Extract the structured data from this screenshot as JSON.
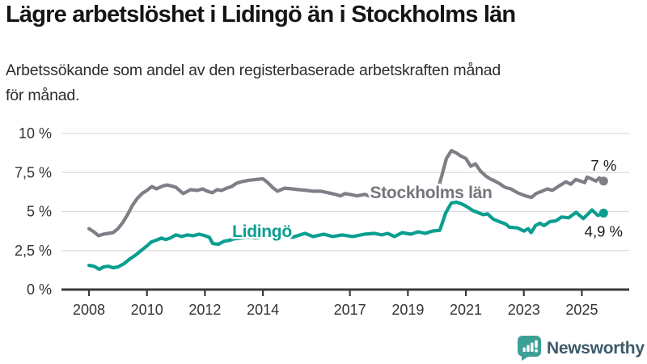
{
  "header": {
    "title": "Lägre arbetslöshet i Lidingö än i Stockholms län",
    "subtitle_lines": [
      "Arbetssökande som andel av den registerbaserade arbetskraften månad",
      "för månad."
    ]
  },
  "chart_data": {
    "type": "line",
    "unit": "%",
    "grid": "horizontal",
    "x_axis": {
      "range": [
        2007.9,
        2026.3
      ],
      "ticks": [
        2008,
        2010,
        2012,
        2014,
        2017,
        2019,
        2021,
        2023,
        2025
      ],
      "labels": [
        "2008",
        "2010",
        "2012",
        "2014",
        "2017",
        "2019",
        "2021",
        "2023",
        "2025"
      ]
    },
    "y_axis": {
      "range": [
        0,
        10
      ],
      "ticks": [
        0,
        2.5,
        5,
        7.5,
        10
      ],
      "labels": [
        "0 %",
        "2,5 %",
        "5 %",
        "7,5 %",
        "10 %"
      ]
    },
    "series": [
      {
        "name": "Stockholms län",
        "color": "#7e7e86",
        "label_color": "#74747c",
        "end_label": "7 %",
        "end_value": 7.0,
        "inline_label_anchor": {
          "year": 2019.8,
          "value": 6.22
        },
        "points": [
          [
            2008.0,
            3.9
          ],
          [
            2008.17,
            3.7
          ],
          [
            2008.33,
            3.45
          ],
          [
            2008.5,
            3.55
          ],
          [
            2008.67,
            3.6
          ],
          [
            2008.83,
            3.65
          ],
          [
            2009.0,
            3.9
          ],
          [
            2009.17,
            4.3
          ],
          [
            2009.33,
            4.8
          ],
          [
            2009.5,
            5.4
          ],
          [
            2009.67,
            5.85
          ],
          [
            2009.83,
            6.15
          ],
          [
            2010.0,
            6.35
          ],
          [
            2010.17,
            6.6
          ],
          [
            2010.33,
            6.45
          ],
          [
            2010.5,
            6.6
          ],
          [
            2010.67,
            6.7
          ],
          [
            2010.83,
            6.65
          ],
          [
            2011.0,
            6.55
          ],
          [
            2011.25,
            6.15
          ],
          [
            2011.5,
            6.4
          ],
          [
            2011.75,
            6.35
          ],
          [
            2011.92,
            6.45
          ],
          [
            2012.08,
            6.3
          ],
          [
            2012.25,
            6.2
          ],
          [
            2012.42,
            6.4
          ],
          [
            2012.58,
            6.35
          ],
          [
            2012.75,
            6.5
          ],
          [
            2012.92,
            6.6
          ],
          [
            2013.08,
            6.8
          ],
          [
            2013.25,
            6.9
          ],
          [
            2013.5,
            7.0
          ],
          [
            2013.75,
            7.05
          ],
          [
            2014.0,
            7.1
          ],
          [
            2014.17,
            6.85
          ],
          [
            2014.33,
            6.55
          ],
          [
            2014.5,
            6.3
          ],
          [
            2014.75,
            6.5
          ],
          [
            2015.0,
            6.45
          ],
          [
            2015.25,
            6.4
          ],
          [
            2015.5,
            6.35
          ],
          [
            2015.75,
            6.3
          ],
          [
            2016.0,
            6.3
          ],
          [
            2016.25,
            6.2
          ],
          [
            2016.5,
            6.1
          ],
          [
            2016.67,
            6.0
          ],
          [
            2016.83,
            6.15
          ],
          [
            2017.0,
            6.1
          ],
          [
            2017.25,
            6.0
          ],
          [
            2017.5,
            6.1
          ],
          [
            2017.75,
            5.95
          ],
          [
            2018.0,
            6.05
          ],
          [
            2018.25,
            5.95
          ],
          [
            2018.5,
            6.0
          ],
          [
            2018.75,
            6.05
          ],
          [
            2019.0,
            6.0
          ],
          [
            2019.25,
            6.05
          ],
          [
            2019.5,
            5.95
          ],
          [
            2019.75,
            6.05
          ],
          [
            2020.0,
            6.2
          ],
          [
            2020.17,
            7.3
          ],
          [
            2020.33,
            8.4
          ],
          [
            2020.5,
            8.9
          ],
          [
            2020.67,
            8.75
          ],
          [
            2020.83,
            8.55
          ],
          [
            2021.0,
            8.4
          ],
          [
            2021.17,
            7.9
          ],
          [
            2021.33,
            8.05
          ],
          [
            2021.5,
            7.6
          ],
          [
            2021.67,
            7.3
          ],
          [
            2021.83,
            7.1
          ],
          [
            2021.95,
            7.0
          ],
          [
            2022.15,
            6.8
          ],
          [
            2022.35,
            6.55
          ],
          [
            2022.55,
            6.45
          ],
          [
            2022.78,
            6.2
          ],
          [
            2023.06,
            6.0
          ],
          [
            2023.26,
            5.9
          ],
          [
            2023.42,
            6.15
          ],
          [
            2023.62,
            6.3
          ],
          [
            2023.81,
            6.45
          ],
          [
            2023.98,
            6.35
          ],
          [
            2024.18,
            6.6
          ],
          [
            2024.45,
            6.9
          ],
          [
            2024.62,
            6.75
          ],
          [
            2024.79,
            7.05
          ],
          [
            2024.96,
            6.95
          ],
          [
            2025.1,
            6.85
          ],
          [
            2025.18,
            7.2
          ],
          [
            2025.32,
            7.1
          ],
          [
            2025.49,
            6.95
          ],
          [
            2025.6,
            7.15
          ],
          [
            2025.75,
            6.95
          ]
        ]
      },
      {
        "name": "Lidingö",
        "color": "#0a9e90",
        "label_color": "#0a9e90",
        "end_label": "4,9 %",
        "end_value": 4.9,
        "inline_label_anchor": {
          "year": 2013.97,
          "value": 3.73
        },
        "points": [
          [
            2008.0,
            1.55
          ],
          [
            2008.17,
            1.5
          ],
          [
            2008.36,
            1.3
          ],
          [
            2008.5,
            1.45
          ],
          [
            2008.67,
            1.5
          ],
          [
            2008.83,
            1.4
          ],
          [
            2009.0,
            1.45
          ],
          [
            2009.2,
            1.65
          ],
          [
            2009.4,
            1.95
          ],
          [
            2009.6,
            2.2
          ],
          [
            2009.8,
            2.5
          ],
          [
            2010.0,
            2.8
          ],
          [
            2010.15,
            3.05
          ],
          [
            2010.3,
            3.15
          ],
          [
            2010.5,
            3.3
          ],
          [
            2010.65,
            3.2
          ],
          [
            2010.8,
            3.3
          ],
          [
            2011.0,
            3.5
          ],
          [
            2011.2,
            3.4
          ],
          [
            2011.4,
            3.5
          ],
          [
            2011.6,
            3.45
          ],
          [
            2011.8,
            3.55
          ],
          [
            2012.0,
            3.45
          ],
          [
            2012.15,
            3.35
          ],
          [
            2012.27,
            2.95
          ],
          [
            2012.46,
            2.9
          ],
          [
            2012.66,
            3.1
          ],
          [
            2012.83,
            3.15
          ],
          [
            2013.0,
            3.25
          ],
          [
            2013.25,
            3.3
          ],
          [
            2013.5,
            3.35
          ],
          [
            2013.75,
            3.3
          ],
          [
            2014.0,
            3.35
          ],
          [
            2014.25,
            3.4
          ],
          [
            2014.5,
            3.45
          ],
          [
            2014.75,
            3.4
          ],
          [
            2015.03,
            3.35
          ],
          [
            2015.45,
            3.6
          ],
          [
            2015.73,
            3.4
          ],
          [
            2016.1,
            3.55
          ],
          [
            2016.4,
            3.4
          ],
          [
            2016.73,
            3.5
          ],
          [
            2017.1,
            3.4
          ],
          [
            2017.5,
            3.55
          ],
          [
            2017.85,
            3.6
          ],
          [
            2018.1,
            3.5
          ],
          [
            2018.3,
            3.6
          ],
          [
            2018.54,
            3.4
          ],
          [
            2018.8,
            3.65
          ],
          [
            2019.1,
            3.55
          ],
          [
            2019.35,
            3.7
          ],
          [
            2019.6,
            3.6
          ],
          [
            2019.85,
            3.75
          ],
          [
            2020.1,
            3.8
          ],
          [
            2020.3,
            4.9
          ],
          [
            2020.5,
            5.55
          ],
          [
            2020.67,
            5.6
          ],
          [
            2020.83,
            5.5
          ],
          [
            2021.0,
            5.35
          ],
          [
            2021.25,
            5.05
          ],
          [
            2021.4,
            4.95
          ],
          [
            2021.6,
            4.8
          ],
          [
            2021.75,
            4.85
          ],
          [
            2021.95,
            4.5
          ],
          [
            2022.15,
            4.35
          ],
          [
            2022.37,
            4.2
          ],
          [
            2022.5,
            4.0
          ],
          [
            2022.78,
            3.95
          ],
          [
            2023.0,
            3.75
          ],
          [
            2023.15,
            3.9
          ],
          [
            2023.25,
            3.65
          ],
          [
            2023.4,
            4.1
          ],
          [
            2023.55,
            4.25
          ],
          [
            2023.7,
            4.1
          ],
          [
            2023.9,
            4.35
          ],
          [
            2024.1,
            4.4
          ],
          [
            2024.3,
            4.65
          ],
          [
            2024.55,
            4.6
          ],
          [
            2024.8,
            4.95
          ],
          [
            2025.05,
            4.55
          ],
          [
            2025.35,
            5.1
          ],
          [
            2025.55,
            4.75
          ],
          [
            2025.75,
            4.9
          ]
        ]
      }
    ],
    "style": {
      "gridline_color": "#dcdcdc",
      "axis_color": "#3a3a3a",
      "tick_label_color": "#333333",
      "end_label_color": "#1a1a1a"
    }
  },
  "footer": {
    "brand": "Newsworthy",
    "brand_color": "#3c5a6a",
    "icon": "newsworthy-chart-bubble-icon",
    "icon_color": "#3da096"
  }
}
